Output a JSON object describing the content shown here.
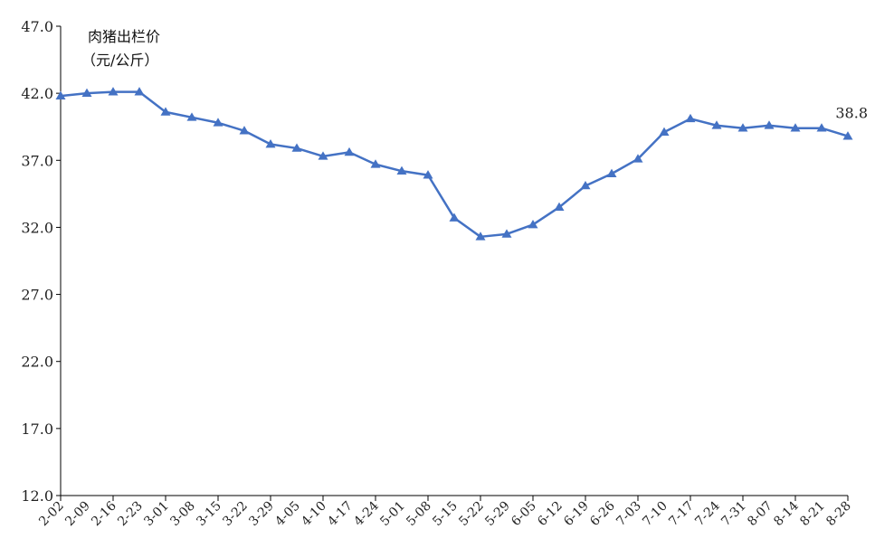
{
  "colors": {
    "series": "#4472C4",
    "axis": "#000000",
    "text": "#222222"
  },
  "chart_data": {
    "type": "line",
    "title": "肉猪出栏价",
    "subtitle": "（元/公斤）",
    "xlabel": "",
    "ylabel": "",
    "ylim": [
      12.0,
      47.0
    ],
    "yticks": [
      "12.0",
      "17.0",
      "22.0",
      "27.0",
      "32.0",
      "37.0",
      "42.0",
      "47.0"
    ],
    "grid": false,
    "marker": "triangle",
    "categories": [
      "2-02",
      "2-09",
      "2-16",
      "2-23",
      "3-01",
      "3-08",
      "3-15",
      "3-22",
      "3-29",
      "4-05",
      "4-10",
      "4-17",
      "4-24",
      "5-01",
      "5-08",
      "5-15",
      "5-22",
      "5-29",
      "6-05",
      "6-12",
      "6-19",
      "6-26",
      "7-03",
      "7-10",
      "7-17",
      "7-24",
      "7-31",
      "8-07",
      "8-14",
      "8-21",
      "8-28"
    ],
    "series": [
      {
        "values": [
          41.8,
          42.0,
          42.1,
          42.1,
          40.6,
          40.2,
          39.8,
          39.2,
          38.2,
          37.9,
          37.3,
          37.6,
          36.7,
          36.2,
          35.9,
          32.7,
          31.3,
          31.5,
          32.2,
          33.5,
          35.1,
          36.0,
          37.1,
          39.1,
          40.1,
          39.6,
          39.4,
          39.6,
          39.4,
          39.4,
          38.8
        ]
      }
    ],
    "annotations": [
      {
        "category": "8-28",
        "text": "38.8"
      }
    ]
  }
}
